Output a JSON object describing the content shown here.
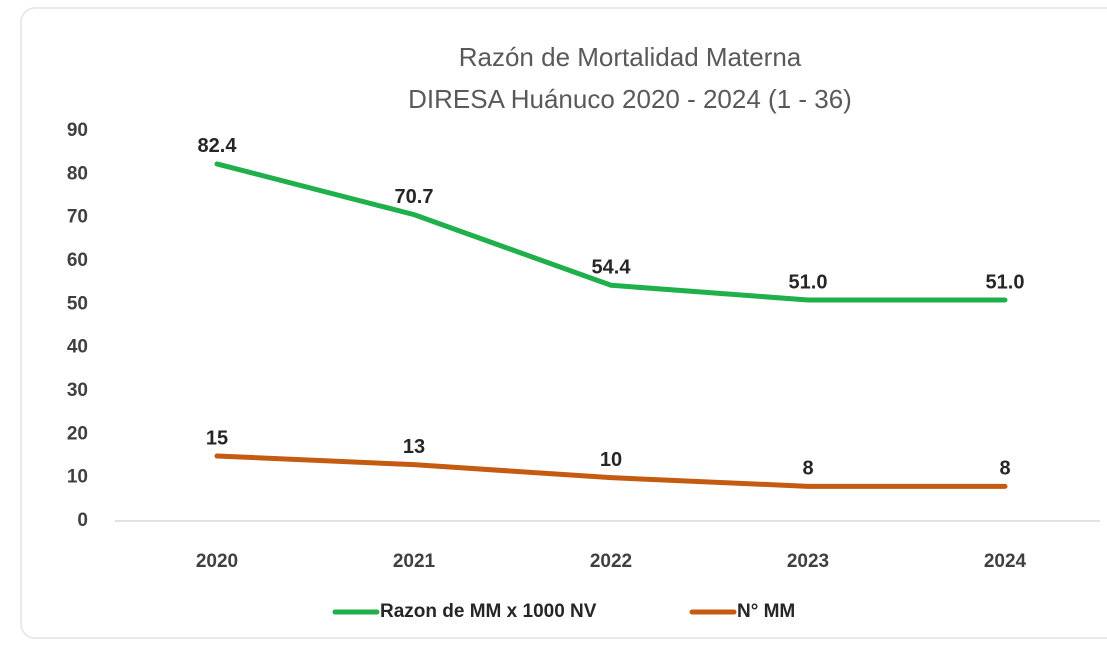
{
  "chart_data": {
    "type": "line",
    "title": "Razón de Mortalidad Materna",
    "subtitle": "DIRESA Huánuco 2020 - 2024 (1 - 36)",
    "categories": [
      "2020",
      "2021",
      "2022",
      "2023",
      "2024"
    ],
    "series": [
      {
        "name": "Razon de MM x 1000 NV",
        "color": "#1fb04c",
        "values": [
          82.4,
          70.7,
          54.4,
          51,
          51
        ],
        "value_labels": [
          "82.4",
          "70.7",
          "54.4",
          "51.0",
          "51.0"
        ]
      },
      {
        "name": "N° MM",
        "color": "#c55a11",
        "values": [
          15,
          13,
          10,
          8,
          8
        ]
      }
    ],
    "ylim": [
      0,
      90
    ],
    "yticks": [
      0,
      10,
      20,
      30,
      40,
      50,
      60,
      70,
      80,
      90
    ],
    "grid": false,
    "legend": "bottom"
  }
}
